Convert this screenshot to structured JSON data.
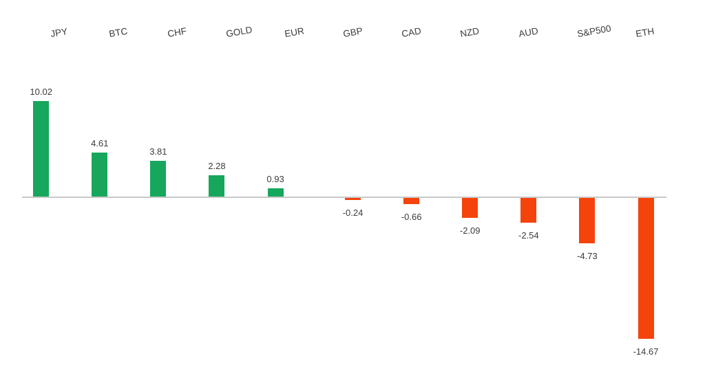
{
  "chart_data": {
    "type": "bar",
    "title": "",
    "xlabel": "",
    "ylabel": "",
    "categories": [
      "JPY",
      "BTC",
      "CHF",
      "GOLD",
      "EUR",
      "GBP",
      "CAD",
      "NZD",
      "AUD",
      "S&P500",
      "ETH"
    ],
    "values": [
      10.02,
      4.61,
      3.81,
      2.28,
      0.93,
      -0.24,
      -0.66,
      -2.09,
      -2.54,
      -4.73,
      -14.67
    ],
    "value_labels": [
      "10.02",
      "4.61",
      "3.81",
      "2.28",
      "0.93",
      "-0.24",
      "-0.66",
      "-2.09",
      "-2.54",
      "-4.73",
      "-14.67"
    ],
    "ylim": [
      -16,
      11
    ],
    "grid": false,
    "legend": "none",
    "y_axis_visible": false,
    "category_label_position": "top",
    "category_label_rotation_deg": 10,
    "colors": {
      "positive": "#16A75C",
      "negative": "#F5430C",
      "axis_line": "#C8C8C8",
      "label_text": "#3B3B3B",
      "background": "#FFFFFF"
    }
  }
}
